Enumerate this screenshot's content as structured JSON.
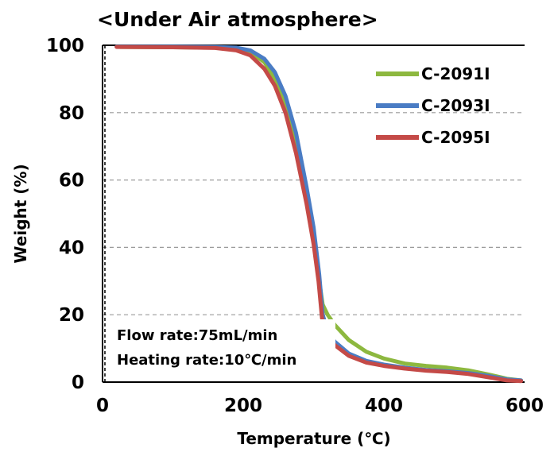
{
  "chart_data": {
    "type": "line",
    "title": "<Under Air atmosphere>",
    "xlabel": "Temperature (℃)",
    "ylabel": "Weight (%)",
    "xlim": [
      0,
      600
    ],
    "ylim": [
      0,
      100
    ],
    "xticks": [
      0,
      200,
      400,
      600
    ],
    "yticks": [
      0,
      20,
      40,
      60,
      80,
      100
    ],
    "x_tick_labels": [
      "0",
      "200",
      "400",
      "600"
    ],
    "y_tick_labels": [
      "0",
      "20",
      "40",
      "60",
      "80",
      "100"
    ],
    "grid": "horizontal dashed",
    "legend_position": "top-right",
    "annotations": [
      "Flow rate:75mL/min",
      "Heating rate:10℃/min"
    ],
    "series": [
      {
        "name": "C-2091I",
        "color": "#8DB83F",
        "points": [
          [
            25,
            99.5
          ],
          [
            100,
            99.4
          ],
          [
            160,
            99.3
          ],
          [
            190,
            99
          ],
          [
            210,
            98
          ],
          [
            230,
            95
          ],
          [
            245,
            90
          ],
          [
            260,
            82
          ],
          [
            275,
            70
          ],
          [
            290,
            55
          ],
          [
            300,
            43
          ],
          [
            308,
            30
          ],
          [
            313,
            23
          ],
          [
            320,
            20
          ],
          [
            330,
            17
          ],
          [
            350,
            12.5
          ],
          [
            375,
            9
          ],
          [
            400,
            7
          ],
          [
            430,
            5.5
          ],
          [
            460,
            4.8
          ],
          [
            490,
            4.3
          ],
          [
            520,
            3.5
          ],
          [
            550,
            2.2
          ],
          [
            575,
            1
          ],
          [
            595,
            0.5
          ]
        ]
      },
      {
        "name": "C-2093I",
        "color": "#4A7CC4",
        "points": [
          [
            20,
            99.6
          ],
          [
            100,
            99.6
          ],
          [
            160,
            99.5
          ],
          [
            190,
            99.3
          ],
          [
            210,
            98.5
          ],
          [
            230,
            96
          ],
          [
            245,
            92
          ],
          [
            260,
            85
          ],
          [
            275,
            74
          ],
          [
            290,
            58
          ],
          [
            300,
            46
          ],
          [
            308,
            32
          ],
          [
            313,
            20
          ],
          [
            320,
            15
          ],
          [
            330,
            12
          ],
          [
            350,
            8.5
          ],
          [
            375,
            6.3
          ],
          [
            400,
            5.2
          ],
          [
            430,
            4.3
          ],
          [
            460,
            3.6
          ],
          [
            490,
            3.2
          ],
          [
            520,
            2.7
          ],
          [
            550,
            1.8
          ],
          [
            575,
            0.8
          ],
          [
            595,
            0.5
          ]
        ]
      },
      {
        "name": "C-2095I",
        "color": "#C44A47",
        "points": [
          [
            20,
            99.5
          ],
          [
            100,
            99.4
          ],
          [
            160,
            99.2
          ],
          [
            190,
            98.5
          ],
          [
            210,
            97
          ],
          [
            230,
            93
          ],
          [
            245,
            88
          ],
          [
            260,
            80
          ],
          [
            275,
            68
          ],
          [
            290,
            53
          ],
          [
            300,
            41
          ],
          [
            307,
            30
          ],
          [
            312,
            19
          ],
          [
            320,
            14
          ],
          [
            330,
            11
          ],
          [
            350,
            7.8
          ],
          [
            375,
            5.8
          ],
          [
            400,
            4.8
          ],
          [
            430,
            4
          ],
          [
            460,
            3.4
          ],
          [
            490,
            3
          ],
          [
            520,
            2.4
          ],
          [
            550,
            1.4
          ],
          [
            575,
            0.5
          ],
          [
            595,
            0.3
          ]
        ]
      }
    ]
  }
}
